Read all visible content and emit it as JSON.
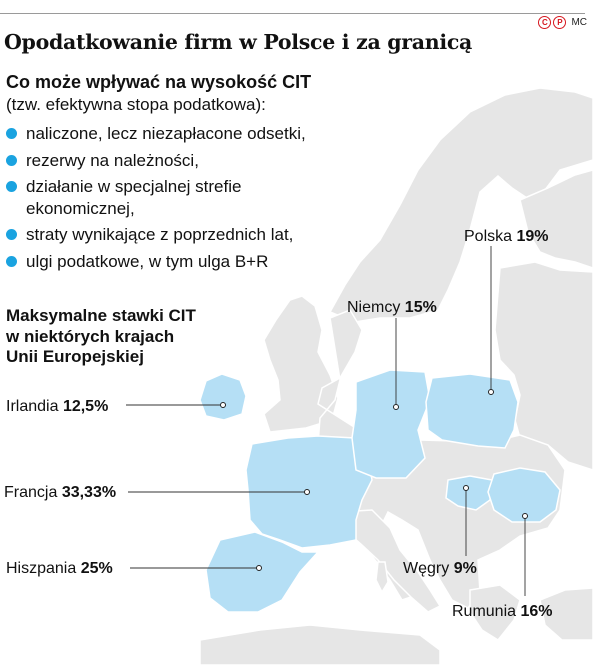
{
  "header": {
    "credit_icons": [
      "C",
      "P"
    ],
    "credit_text": "MC"
  },
  "title": "Opodatkowanie firm w Polsce i za granicą",
  "cit_factors": {
    "heading": "Co może wpływać na wysokość CIT",
    "note": "(tzw. efektywna stopa podatkowa):",
    "items": [
      "naliczone, lecz niezapłacone odsetki,",
      "rezerwy na należności,",
      "działanie w specjalnej strefie",
      "straty wynikające z poprzednich lat,",
      "ulgi podatkowe, w tym ulga B+R"
    ],
    "item3_continuation": "ekonomicznej,"
  },
  "rates": {
    "heading_lines": [
      "Maksymalne stawki CIT",
      "w niektórych krajach",
      "Unii Europejskiej"
    ],
    "countries": [
      {
        "name": "Polska",
        "rate": "19%"
      },
      {
        "name": "Niemcy",
        "rate": "15%"
      },
      {
        "name": "Irlandia",
        "rate": "12,5%"
      },
      {
        "name": "Francja",
        "rate": "33,33%"
      },
      {
        "name": "Hiszpania",
        "rate": "25%"
      },
      {
        "name": "Węgry",
        "rate": "9%"
      },
      {
        "name": "Rumunia",
        "rate": "16%"
      }
    ]
  },
  "colors": {
    "highlight": "#b5dff5",
    "land": "#e6e6e6",
    "border": "#ffffff",
    "bullet": "#1aa3e0"
  }
}
